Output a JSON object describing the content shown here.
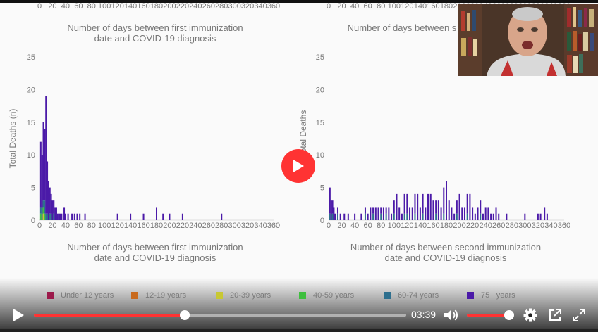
{
  "video": {
    "current_time": "03:39",
    "progress": 0.406,
    "volume": 1.0,
    "accent_color": "#ff3333"
  },
  "icons": {
    "play": "play-icon",
    "center_play": "play-circle-icon",
    "volume": "speaker-icon",
    "settings": "gear-icon",
    "popout": "external-link-icon",
    "fullscreen": "expand-icon"
  },
  "legend": [
    {
      "label": "Under 12 years",
      "color": "#9c1a4b"
    },
    {
      "label": "12-19 years",
      "color": "#c86a1e"
    },
    {
      "label": "20-39 years",
      "color": "#c8c833"
    },
    {
      "label": "40-59 years",
      "color": "#3fbf3f"
    },
    {
      "label": "60-74 years",
      "color": "#2e6f8e"
    },
    {
      "label": "75+ years",
      "color": "#4b1aa8"
    }
  ],
  "chart_data": [
    {
      "type": "bar",
      "stacked": true,
      "top_xticks": [
        "0",
        "20",
        "40",
        "60",
        "80",
        "100",
        "120",
        "140",
        "160",
        "180",
        "200",
        "220",
        "240",
        "260",
        "280",
        "300",
        "320",
        "340",
        "360"
      ],
      "top_xlabel": [
        "Number of days between first immunization",
        "date and COVID-19 diagnosis"
      ],
      "ylabel": "Total Deaths (n)",
      "yticks": [
        "0",
        "5",
        "10",
        "15",
        "20",
        "25"
      ],
      "ylim": [
        0,
        25
      ],
      "xlim": [
        0,
        360
      ],
      "xticks": [
        "0",
        "20",
        "40",
        "60",
        "80",
        "100",
        "120",
        "140",
        "160",
        "180",
        "200",
        "220",
        "240",
        "260",
        "280",
        "300",
        "320",
        "340",
        "360"
      ],
      "xlabel": [
        "Number of days between first immunization",
        "date and COVID-19 diagnosis"
      ],
      "x": [
        2,
        4,
        6,
        8,
        10,
        12,
        14,
        16,
        18,
        20,
        22,
        24,
        26,
        28,
        30,
        32,
        34,
        38,
        40,
        44,
        50,
        54,
        58,
        62,
        70,
        120,
        140,
        160,
        180,
        190,
        200,
        220,
        280
      ],
      "series": [
        {
          "name": "Under 12 years",
          "values": [
            0,
            0,
            0,
            0,
            0,
            0,
            0,
            0,
            0,
            0,
            0,
            0,
            0,
            0,
            0,
            0,
            0,
            0,
            0,
            0,
            0,
            0,
            0,
            0,
            0,
            0,
            0,
            0,
            0,
            0,
            0,
            0,
            0
          ]
        },
        {
          "name": "12-19 years",
          "values": [
            0,
            0,
            0,
            0,
            0,
            0,
            0,
            0,
            0,
            0,
            0,
            0,
            0,
            0,
            0,
            0,
            0,
            0,
            0,
            0,
            0,
            0,
            0,
            0,
            0,
            0,
            0,
            0,
            0,
            0,
            0,
            0,
            0
          ]
        },
        {
          "name": "20-39 years",
          "values": [
            0,
            0,
            1,
            0,
            0,
            0,
            0,
            0,
            0,
            0,
            0,
            0,
            0,
            0,
            0,
            0,
            0,
            0,
            0,
            0,
            0,
            0,
            0,
            0,
            0,
            0,
            0,
            0,
            0,
            0,
            0,
            0,
            0
          ]
        },
        {
          "name": "40-59 years",
          "values": [
            1,
            0,
            1,
            1,
            0,
            0,
            0,
            0,
            0,
            0,
            0,
            0,
            0,
            0,
            0,
            0,
            0,
            0,
            0,
            0,
            0,
            0,
            0,
            0,
            0,
            0,
            0,
            0,
            0,
            0,
            0,
            0,
            0
          ]
        },
        {
          "name": "60-74 years",
          "values": [
            1,
            2,
            1,
            2,
            1,
            1,
            0,
            1,
            1,
            0,
            1,
            0,
            0,
            0,
            0,
            0,
            0,
            0,
            0,
            0,
            0,
            0,
            0,
            0,
            0,
            0,
            0,
            0,
            0,
            0,
            0,
            0,
            0
          ]
        },
        {
          "name": "75+ years",
          "values": [
            10,
            8,
            12,
            11,
            18,
            8,
            6,
            4,
            3,
            3,
            2,
            2,
            2,
            1,
            1,
            1,
            1,
            2,
            1,
            1,
            1,
            1,
            1,
            1,
            1,
            1,
            1,
            1,
            2,
            1,
            1,
            1,
            1
          ]
        }
      ]
    },
    {
      "type": "bar",
      "stacked": true,
      "top_xticks": [
        "0",
        "20",
        "40",
        "60",
        "80",
        "100",
        "120",
        "140",
        "160",
        "180",
        "200",
        "220",
        "240",
        "260",
        "280",
        "300",
        "320",
        "340",
        "360"
      ],
      "top_xlabel": [
        "Number of days between s"
      ],
      "ylabel": "Total Deaths",
      "yticks": [
        "0",
        "5",
        "10",
        "15",
        "20",
        "25"
      ],
      "ylim": [
        0,
        25
      ],
      "xlim": [
        0,
        360
      ],
      "xticks": [
        "0",
        "20",
        "40",
        "60",
        "80",
        "100",
        "120",
        "140",
        "160",
        "180",
        "200",
        "220",
        "240",
        "260",
        "280",
        "300",
        "320",
        "340",
        "360"
      ],
      "xlabel": [
        "Number of days between second immunization",
        "date and COVID-19 diagnosis"
      ],
      "x": [
        2,
        4,
        6,
        8,
        10,
        14,
        18,
        24,
        30,
        40,
        50,
        56,
        60,
        64,
        68,
        72,
        76,
        80,
        84,
        88,
        92,
        96,
        100,
        104,
        108,
        112,
        116,
        120,
        124,
        128,
        132,
        136,
        140,
        144,
        148,
        152,
        156,
        160,
        164,
        168,
        172,
        176,
        180,
        184,
        188,
        192,
        196,
        200,
        204,
        208,
        212,
        216,
        220,
        224,
        228,
        232,
        236,
        240,
        244,
        248,
        252,
        256,
        260,
        272,
        300,
        320,
        324,
        330,
        334
      ],
      "series": [
        {
          "name": "Under 12 years",
          "values": [
            0,
            0,
            0,
            0,
            0,
            0,
            0,
            0,
            0,
            0,
            0,
            0,
            0,
            0,
            0,
            0,
            0,
            0,
            0,
            0,
            0,
            0,
            0,
            0,
            0,
            0,
            0,
            0,
            0,
            0,
            0,
            0,
            0,
            0,
            0,
            0,
            0,
            0,
            0,
            0,
            0,
            0,
            0,
            0,
            0,
            0,
            0,
            0,
            0,
            0,
            0,
            0,
            0,
            0,
            0,
            0,
            0,
            0,
            0,
            0,
            0,
            0,
            0,
            0,
            0,
            0,
            0,
            0,
            0
          ]
        },
        {
          "name": "12-19 years",
          "values": [
            0,
            0,
            0,
            0,
            0,
            0,
            0,
            0,
            0,
            0,
            0,
            0,
            0,
            0,
            0,
            0,
            0,
            0,
            0,
            0,
            0,
            0,
            0,
            0,
            0,
            0,
            0,
            0,
            0,
            0,
            0,
            0,
            0,
            0,
            0,
            0,
            0,
            0,
            0,
            0,
            0,
            0,
            0,
            0,
            0,
            0,
            0,
            0,
            0,
            0,
            0,
            0,
            0,
            0,
            0,
            0,
            0,
            0,
            0,
            0,
            0,
            0,
            0,
            0,
            0,
            0,
            0,
            0,
            0
          ]
        },
        {
          "name": "20-39 years",
          "values": [
            0,
            0,
            0,
            0,
            0,
            0,
            0,
            0,
            0,
            0,
            0,
            0,
            0,
            0,
            0,
            0,
            0,
            0,
            0,
            0,
            0,
            0,
            0,
            0,
            0,
            0,
            0,
            0,
            0,
            0,
            0,
            0,
            0,
            0,
            0,
            0,
            0,
            0,
            0,
            0,
            0,
            0,
            0,
            0,
            0,
            0,
            0,
            0,
            0,
            0,
            0,
            0,
            0,
            0,
            0,
            0,
            0,
            0,
            0,
            0,
            0,
            0,
            0,
            0,
            0,
            0,
            0,
            0,
            0
          ]
        },
        {
          "name": "40-59 years",
          "values": [
            0,
            0,
            0,
            0,
            0,
            0,
            0,
            0,
            0,
            0,
            0,
            0,
            0,
            0,
            0,
            0,
            0,
            0,
            0,
            0,
            0,
            0,
            0,
            0,
            0,
            0,
            0,
            0,
            0,
            0,
            0,
            0,
            0,
            0,
            0,
            0,
            0,
            0,
            0,
            0,
            0,
            0,
            0,
            0,
            0,
            0,
            0,
            0,
            0,
            0,
            0,
            0,
            0,
            0,
            0,
            0,
            0,
            0,
            0,
            0,
            0,
            0,
            0,
            0,
            0,
            0,
            0,
            0,
            0
          ]
        },
        {
          "name": "60-74 years",
          "values": [
            1,
            0,
            1,
            0,
            0,
            1,
            0,
            0,
            0,
            0,
            0,
            1,
            0,
            0,
            1,
            0,
            0,
            1,
            0,
            1,
            0,
            0,
            1,
            0,
            0,
            0,
            1,
            1,
            0,
            0,
            1,
            0,
            0,
            1,
            0,
            0,
            0,
            0,
            1,
            0,
            0,
            1,
            0,
            0,
            0,
            0,
            1,
            0,
            0,
            0,
            1,
            0,
            0,
            0,
            0,
            1,
            0,
            0,
            0,
            0,
            0,
            0,
            0,
            0,
            0,
            0,
            0,
            0,
            0
          ]
        },
        {
          "name": "75+ years",
          "values": [
            4,
            3,
            2,
            2,
            1,
            1,
            1,
            1,
            1,
            1,
            1,
            1,
            1,
            2,
            1,
            2,
            2,
            1,
            2,
            1,
            2,
            1,
            2,
            4,
            2,
            1,
            3,
            3,
            2,
            2,
            3,
            4,
            2,
            3,
            2,
            4,
            4,
            3,
            2,
            3,
            2,
            4,
            6,
            3,
            2,
            1,
            2,
            4,
            2,
            2,
            3,
            4,
            2,
            1,
            2,
            2,
            1,
            2,
            2,
            1,
            1,
            2,
            1,
            1,
            1,
            1,
            1,
            2,
            1
          ]
        }
      ]
    }
  ]
}
